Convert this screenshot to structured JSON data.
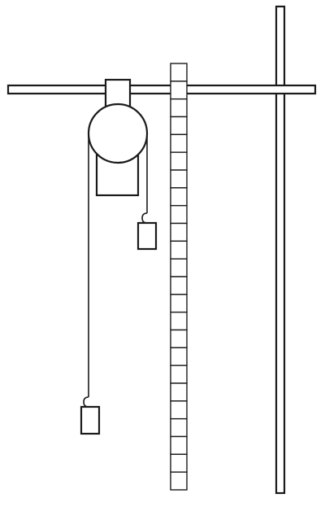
{
  "figure": {
    "kind": "pulley-apparatus-diagram",
    "components": [
      "stand",
      "crossbar",
      "pulley",
      "pulley-block",
      "rope",
      "weight-left",
      "weight-right",
      "measuring-scale"
    ],
    "scale_divisions": 24,
    "colors": {
      "stroke": "#1a1a1a",
      "background": "#ffffff"
    }
  }
}
